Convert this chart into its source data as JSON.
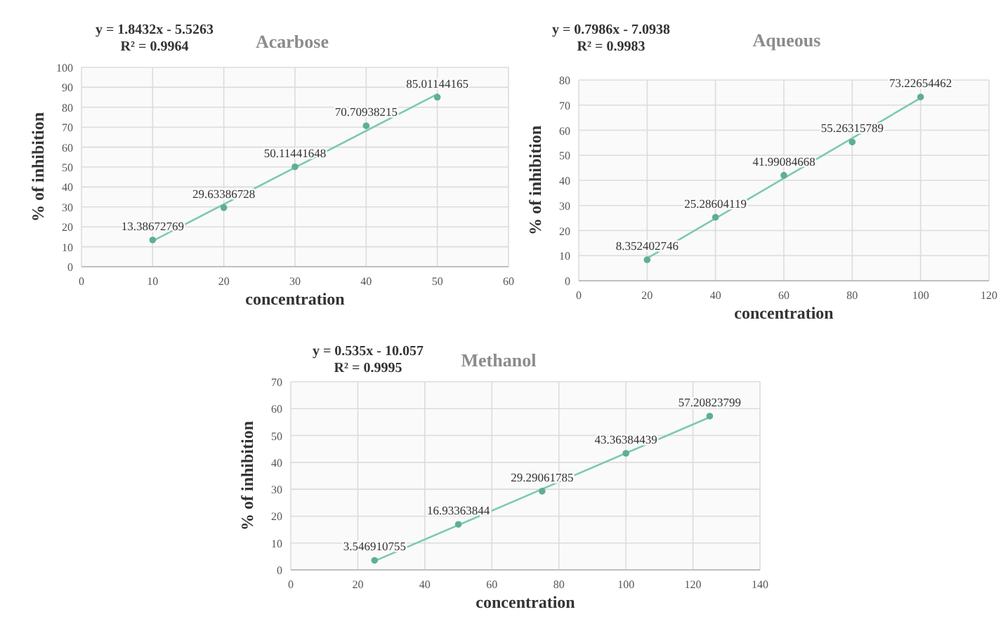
{
  "chart_data": [
    {
      "type": "scatter",
      "title": "Acarbose",
      "xlabel": "concentration",
      "ylabel": "% of inhibition",
      "annotations": [
        "y = 1.8432x - 5.5263",
        "R² = 0.9964"
      ],
      "xlim": [
        0,
        60
      ],
      "xticks": [
        0,
        10,
        20,
        30,
        40,
        50,
        60
      ],
      "ylim": [
        0,
        100
      ],
      "yticks": [
        0,
        10,
        20,
        30,
        40,
        50,
        60,
        70,
        80,
        90,
        100
      ],
      "grid": true,
      "series": [
        {
          "type": "line",
          "color": "#7cc9b2",
          "x": [
            10,
            50
          ],
          "values": [
            12.9,
            86.6
          ],
          "marker": "none",
          "line_style": "solid"
        },
        {
          "color": "#5fae96",
          "x": [
            10,
            20,
            30,
            40,
            50
          ],
          "values": [
            13.38672769,
            29.63386728,
            50.11441648,
            70.70938215,
            85.01144165
          ],
          "marker": "circle",
          "value_labels": [
            "13.38672769",
            "29.63386728",
            "50.11441648",
            "70.70938215",
            "85.01144165"
          ]
        }
      ]
    },
    {
      "type": "scatter",
      "title": "Aqueous",
      "xlabel": "concentration",
      "ylabel": "% of inhibition",
      "annotations": [
        "y = 0.7986x - 7.0938",
        "R² = 0.9983"
      ],
      "xlim": [
        0,
        120
      ],
      "xticks": [
        0,
        20,
        40,
        60,
        80,
        100,
        120
      ],
      "ylim": [
        0,
        80
      ],
      "yticks": [
        0,
        10,
        20,
        30,
        40,
        50,
        60,
        70,
        80
      ],
      "grid": true,
      "series": [
        {
          "type": "line",
          "color": "#7cc9b2",
          "x": [
            20,
            100
          ],
          "values": [
            8.9,
            72.8
          ],
          "marker": "none",
          "line_style": "solid"
        },
        {
          "color": "#5fae96",
          "x": [
            20,
            40,
            60,
            80,
            100
          ],
          "values": [
            8.352402746,
            25.28604119,
            41.99084668,
            55.26315789,
            73.22654462
          ],
          "marker": "circle",
          "value_labels": [
            "8.352402746",
            "25.28604119",
            "41.99084668",
            "55.26315789",
            "73.22654462"
          ]
        }
      ]
    },
    {
      "type": "scatter",
      "title": "Methanol",
      "xlabel": "concentration",
      "ylabel": "% of inhibition",
      "annotations": [
        "y = 0.535x - 10.057",
        "R² = 0.9995"
      ],
      "xlim": [
        0,
        140
      ],
      "xticks": [
        0,
        20,
        40,
        60,
        80,
        100,
        120,
        140
      ],
      "ylim": [
        0,
        70
      ],
      "yticks": [
        0,
        10,
        20,
        30,
        40,
        50,
        60,
        70
      ],
      "grid": true,
      "series": [
        {
          "type": "line",
          "color": "#7cc9b2",
          "x": [
            25,
            125
          ],
          "values": [
            3.3,
            56.8
          ],
          "marker": "none",
          "line_style": "solid"
        },
        {
          "color": "#5fae96",
          "x": [
            25,
            50,
            75,
            100,
            125
          ],
          "values": [
            3.546910755,
            16.93363844,
            29.29061785,
            43.36384439,
            57.20823799
          ],
          "marker": "circle",
          "value_labels": [
            "3.546910755",
            "16.93363844",
            "29.29061785",
            "43.36384439",
            "57.20823799"
          ]
        }
      ]
    }
  ]
}
